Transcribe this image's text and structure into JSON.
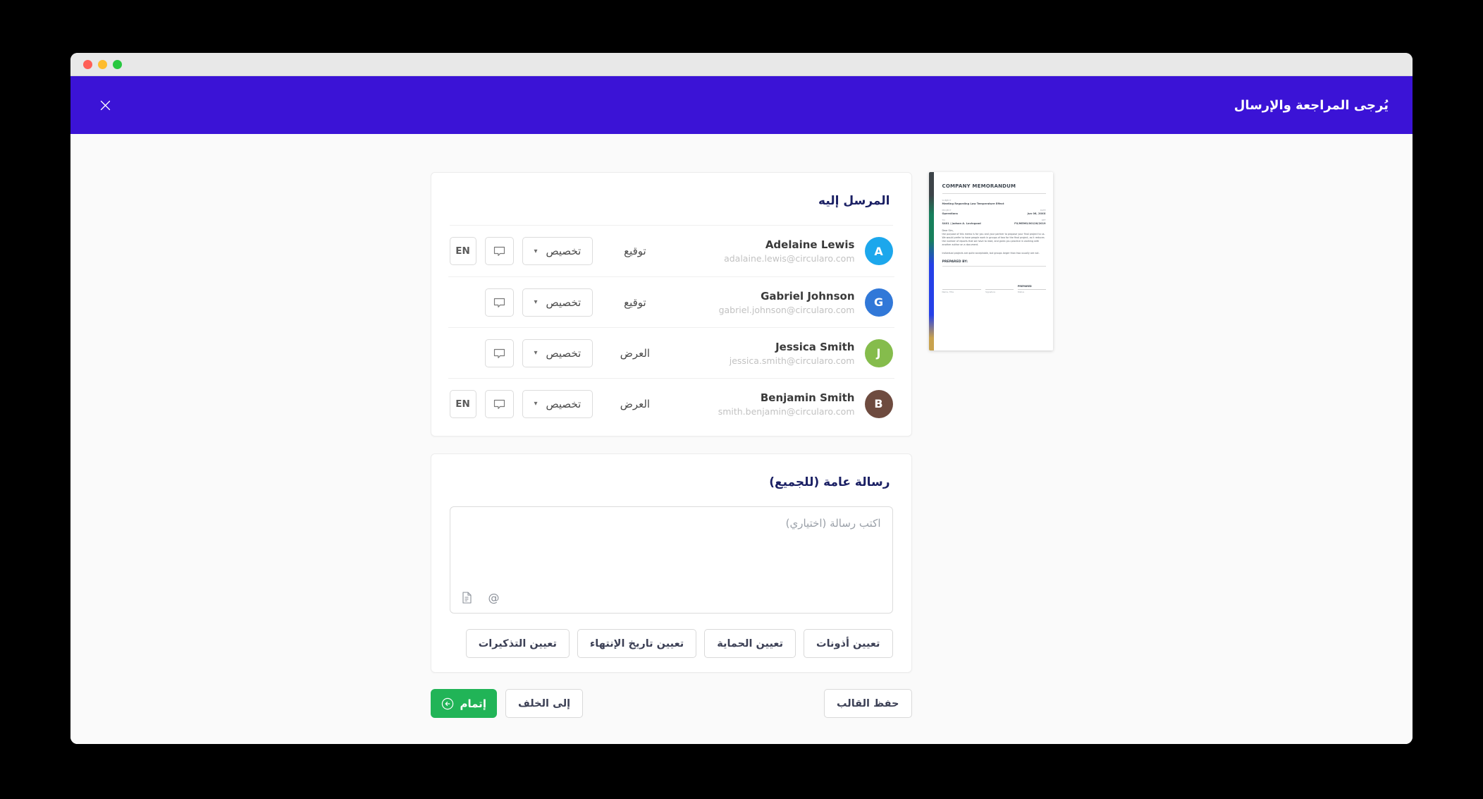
{
  "colors": {
    "header_purple": "#3b13d6",
    "complete_green": "#21b457",
    "content_bg": "#fafafa",
    "traffic_lights": [
      "#ff5f57",
      "#febc2e",
      "#28c840"
    ]
  },
  "header": {
    "title": "يُرجى المراجعة والإرسال"
  },
  "recipients_card": {
    "title": "المرسل إليه",
    "customize_caret": "▾",
    "rows": [
      {
        "initial": "A",
        "avatar_color": "#1ca7ec",
        "name": "Adelaine Lewis",
        "email": "adalaine.lewis@circularo.com",
        "role": "توقيع",
        "customize_label": "تخصيص",
        "has_language": true,
        "language": "EN"
      },
      {
        "initial": "G",
        "avatar_color": "#3178d8",
        "name": "Gabriel Johnson",
        "email": "gabriel.johnson@circularo.com",
        "role": "توقيع",
        "customize_label": "تخصيص",
        "has_language": false,
        "language": ""
      },
      {
        "initial": "J",
        "avatar_color": "#85bc4c",
        "name": "Jessica Smith",
        "email": "jessica.smith@circularo.com",
        "role": "العرض",
        "customize_label": "تخصيص",
        "has_language": false,
        "language": ""
      },
      {
        "initial": "B",
        "avatar_color": "#6e4b3f",
        "name": "Benjamin Smith",
        "email": "smith.benjamin@circularo.com",
        "role": "العرض",
        "customize_label": "تخصيص",
        "has_language": true,
        "language": "EN"
      }
    ]
  },
  "message_card": {
    "title": "رسالة عامة (للجميع)",
    "placeholder": "اكتب رسالة (اختياري)",
    "at_symbol": "@",
    "actions": [
      "تعيين أذونات",
      "تعيين الحماية",
      "تعيين تاريخ الإنتهاء",
      "تعيين التذكيرات"
    ]
  },
  "footer": {
    "complete": "إتمام",
    "back": "إلى الخلف",
    "save_template": "حفظ القالب"
  },
  "thumbnail": {
    "strip_colors": [
      "#3d4449",
      "#17805c",
      "#2540e8",
      "#c8a24e"
    ],
    "memo": {
      "title": "COMPANY MEMORANDUM",
      "subject_label": "SUBJECT",
      "subject": "Meeting Regarding Low Temperature Effect",
      "project_label": "PROJECT",
      "project": "Operations",
      "date_label": "DATE",
      "date": "Jun 06, 20XX",
      "to_label": "TO",
      "to": "S401 / Judson A. Lovingood",
      "ref_label": "REF",
      "ref": "FX/MEMO/00126/2019",
      "body1": "Dear Sirs,",
      "body2": "the purpose of this memo is for you and your partner to propose your final project to us. We would prefer to have people work in groups of two for the final project, as it reduces the number of reports that we have to read, and gives you practice in working with another author on a document.",
      "body3": "Individual projects are quite acceptable, but groups larger than two usually are not.",
      "prepared_by": "PREPARED BY:",
      "prepared": "PREPARED",
      "sig_fields": [
        "Name, Title",
        "Signature",
        "Status"
      ]
    }
  }
}
